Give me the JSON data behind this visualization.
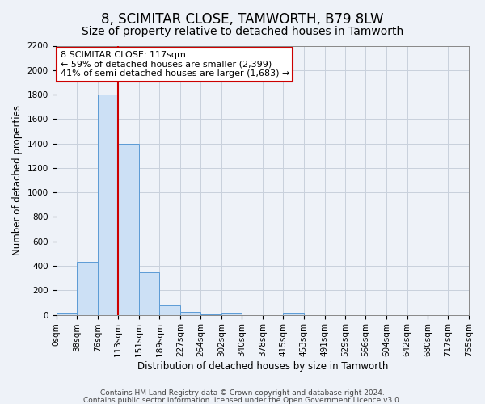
{
  "title": "8, SCIMITAR CLOSE, TAMWORTH, B79 8LW",
  "subtitle": "Size of property relative to detached houses in Tamworth",
  "xlabel": "Distribution of detached houses by size in Tamworth",
  "ylabel": "Number of detached properties",
  "bin_edges": [
    0,
    38,
    76,
    113,
    151,
    189,
    227,
    264,
    302,
    340,
    378,
    415,
    453,
    491,
    529,
    566,
    604,
    642,
    680,
    717,
    755
  ],
  "bin_values": [
    15,
    430,
    1800,
    1400,
    350,
    75,
    25,
    5,
    15,
    0,
    0,
    15,
    0,
    0,
    0,
    0,
    0,
    0,
    0,
    0
  ],
  "bar_facecolor": "#cce0f5",
  "bar_edgecolor": "#5b9bd5",
  "vline_x": 113,
  "vline_color": "#cc0000",
  "annotation_line1": "8 SCIMITAR CLOSE: 117sqm",
  "annotation_line2": "← 59% of detached houses are smaller (2,399)",
  "annotation_line3": "41% of semi-detached houses are larger (1,683) →",
  "ylim": [
    0,
    2200
  ],
  "yticks": [
    0,
    200,
    400,
    600,
    800,
    1000,
    1200,
    1400,
    1600,
    1800,
    2000,
    2200
  ],
  "grid_color": "#c8d0dc",
  "background_color": "#eef2f8",
  "footer_line1": "Contains HM Land Registry data © Crown copyright and database right 2024.",
  "footer_line2": "Contains public sector information licensed under the Open Government Licence v3.0.",
  "title_fontsize": 12,
  "subtitle_fontsize": 10,
  "axis_label_fontsize": 8.5,
  "tick_fontsize": 7.5,
  "annotation_fontsize": 8,
  "footer_fontsize": 6.5
}
